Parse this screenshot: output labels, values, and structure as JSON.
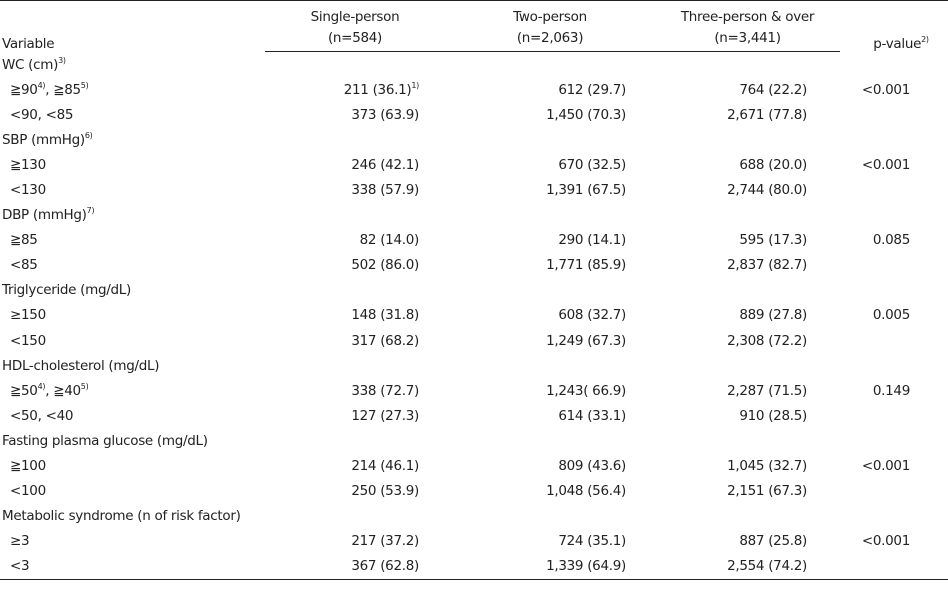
{
  "header": {
    "variable": "Variable",
    "groups": [
      {
        "name": "Single-person",
        "n": "(n=584)"
      },
      {
        "name": "Two-person",
        "n": "(n=2,063)"
      },
      {
        "name": "Three-person & over",
        "n": "(n=3,441)"
      }
    ],
    "pvalue": "p-value",
    "pvalue_note": "2)"
  },
  "rows": [
    {
      "type": "section",
      "label": "WC (cm)",
      "note": "3)"
    },
    {
      "type": "data",
      "parts": [
        "≧90",
        "4)",
        ", ≧85",
        "5)"
      ],
      "v1": "211 (36.1)",
      "v1_note": "1)",
      "v2": "612 (29.7)",
      "v3": "764 (22.2)",
      "p": "<0.001"
    },
    {
      "type": "data",
      "parts": [
        "<90, <85"
      ],
      "v1": "373 (63.9)",
      "v2": "1,450 (70.3)",
      "v3": "2,671 (77.8)",
      "p": ""
    },
    {
      "type": "section",
      "label": "SBP (mmHg)",
      "note": "6)"
    },
    {
      "type": "data",
      "parts": [
        "≧130"
      ],
      "v1": "246 (42.1)",
      "v2": "670 (32.5)",
      "v3": "688 (20.0)",
      "p": "<0.001"
    },
    {
      "type": "data",
      "parts": [
        "<130"
      ],
      "v1": "338 (57.9)",
      "v2": "1,391 (67.5)",
      "v3": "2,744 (80.0)",
      "p": ""
    },
    {
      "type": "section",
      "label": "DBP (mmHg)",
      "note": "7)"
    },
    {
      "type": "data",
      "parts": [
        "≧85"
      ],
      "v1": "82 (14.0)",
      "v2": "290 (14.1)",
      "v3": "595 (17.3)",
      "p": "0.085"
    },
    {
      "type": "data",
      "parts": [
        "<85"
      ],
      "v1": "502 (86.0)",
      "v2": "1,771 (85.9)",
      "v3": "2,837 (82.7)",
      "p": ""
    },
    {
      "type": "section",
      "label": "Triglyceride (mg/dL)"
    },
    {
      "type": "data",
      "parts": [
        "≥150"
      ],
      "v1": "148 (31.8)",
      "v2": "608 (32.7)",
      "v3": "889 (27.8)",
      "p": "0.005"
    },
    {
      "type": "data",
      "parts": [
        "<150"
      ],
      "v1": "317 (68.2)",
      "v2": "1,249 (67.3)",
      "v3": "2,308 (72.2)",
      "p": ""
    },
    {
      "type": "section",
      "label": "HDL-cholesterol  (mg/dL)"
    },
    {
      "type": "data",
      "parts": [
        "≧50",
        "4)",
        ", ≧40",
        "5)"
      ],
      "v1": "338 (72.7)",
      "v2": "1,243( 66.9)",
      "v3": "2,287 (71.5)",
      "p": "0.149"
    },
    {
      "type": "data",
      "parts": [
        "<50, <40"
      ],
      "v1": "127 (27.3)",
      "v2": "614 (33.1)",
      "v3": "910 (28.5)",
      "p": ""
    },
    {
      "type": "section",
      "label": "Fasting plasma glucose (mg/dL)"
    },
    {
      "type": "data",
      "parts": [
        "≧100"
      ],
      "v1": "214 (46.1)",
      "v2": "809 (43.6)",
      "v3": "1,045 (32.7)",
      "p": "<0.001"
    },
    {
      "type": "data",
      "parts": [
        "<100"
      ],
      "v1": "250 (53.9)",
      "v2": "1,048 (56.4)",
      "v3": "2,151 (67.3)",
      "p": ""
    },
    {
      "type": "section",
      "label": "Metabolic syndrome (n of risk factor)"
    },
    {
      "type": "data",
      "parts": [
        "≥3"
      ],
      "v1": "217 (37.2)",
      "v2": "724 (35.1)",
      "v3": "887 (25.8)",
      "p": "<0.001"
    },
    {
      "type": "data",
      "parts": [
        "<3"
      ],
      "v1": "367 (62.8)",
      "v2": "1,339 (64.9)",
      "v3": "2,554 (74.2)",
      "p": ""
    }
  ]
}
